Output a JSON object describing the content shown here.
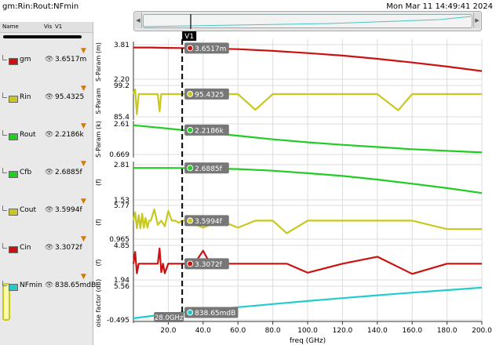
{
  "title": "gm:Rin:Rout:NFmin",
  "datetime": "Mon Mar 11 14:49:41 2024",
  "sidebar": {
    "columns": {
      "name": "Name",
      "vis": "Vis",
      "v1": "V1"
    },
    "traces": [
      {
        "name": "gm",
        "value": "3.6517m",
        "color": "#cc1111"
      },
      {
        "name": "Rin",
        "value": "95.4325",
        "color": "#c8c820"
      },
      {
        "name": "Rout",
        "value": "2.2186k",
        "color": "#22cc22"
      },
      {
        "name": "Cfb",
        "value": "2.6885f",
        "color": "#22cc22"
      },
      {
        "name": "Cout",
        "value": "3.5994f",
        "color": "#c8c820"
      },
      {
        "name": "Cin",
        "value": "3.3072f",
        "color": "#cc1111"
      },
      {
        "name": "NFmin",
        "value": "838.65mdB",
        "color": "#22cccc"
      }
    ]
  },
  "marker": {
    "name": "V1",
    "x": 28.0,
    "x_label": "28.0GHz"
  },
  "chart_data": {
    "type": "line",
    "xlabel": "freq (GHz)",
    "xlim": [
      0,
      200
    ],
    "xticks": [
      "20.0",
      "40.0",
      "60.0",
      "80.0",
      "100.0",
      "120.0",
      "140.0",
      "160.0",
      "180.0",
      "200.0"
    ],
    "xtick_values": [
      20,
      40,
      60,
      80,
      100,
      120,
      140,
      160,
      180,
      200
    ],
    "grid": true,
    "series": [
      {
        "name": "gm",
        "ylabel": "S-Param (m)",
        "ylim": [
          2.2,
          3.81
        ],
        "ytick_labels": [
          "3.81",
          "2.20"
        ],
        "color": "#cc1111",
        "marker_label": "3.6517m",
        "x": [
          0,
          10,
          20,
          28,
          40,
          60,
          80,
          100,
          120,
          140,
          160,
          180,
          200
        ],
        "y": [
          3.68,
          3.68,
          3.66,
          3.6517,
          3.64,
          3.6,
          3.52,
          3.42,
          3.3,
          3.15,
          2.98,
          2.79,
          2.58
        ]
      },
      {
        "name": "Rin",
        "ylabel": "S-Param",
        "ylim": [
          85.4,
          99.2
        ],
        "ytick_labels": [
          "99.2",
          "85.4"
        ],
        "color": "#c8c820",
        "marker_label": "95.4325",
        "x": [
          0,
          1,
          2,
          3,
          4,
          5,
          6,
          10,
          14,
          15,
          16,
          18,
          20,
          22,
          24,
          26,
          28,
          40,
          60,
          70,
          80,
          88,
          100,
          120,
          140,
          152,
          160,
          170,
          180,
          190,
          200
        ],
        "y": [
          95.4,
          97.5,
          86.5,
          95.4,
          95.4,
          95.4,
          95.4,
          95.4,
          95.4,
          87.8,
          95.4,
          95.4,
          95.4,
          95.4,
          95.4,
          95.4,
          95.4325,
          95.4,
          95.4,
          88.5,
          95.4,
          95.4,
          95.4,
          95.4,
          95.4,
          88.3,
          95.4,
          95.4,
          95.4,
          95.4,
          95.4
        ]
      },
      {
        "name": "Rout",
        "ylabel": "S-Param (k)",
        "ylim": [
          0.669,
          2.61
        ],
        "ytick_labels": [
          "2.61",
          "0.669"
        ],
        "color": "#22cc22",
        "marker_label": "2.2186k",
        "x": [
          0,
          10,
          20,
          28,
          40,
          60,
          80,
          100,
          120,
          140,
          160,
          180,
          200
        ],
        "y": [
          2.52,
          2.42,
          2.31,
          2.2186,
          2.08,
          1.86,
          1.63,
          1.44,
          1.28,
          1.14,
          1.0,
          0.9,
          0.8
        ]
      },
      {
        "name": "Cfb",
        "ylabel": "(f)",
        "ylim": [
          1.53,
          2.81
        ],
        "ytick_labels": [
          "2.81",
          "1.53"
        ],
        "color": "#22cc22",
        "marker_label": "2.6885f",
        "x": [
          0,
          10,
          20,
          28,
          40,
          60,
          80,
          100,
          120,
          140,
          160,
          180,
          200
        ],
        "y": [
          2.69,
          2.69,
          2.69,
          2.6885,
          2.68,
          2.65,
          2.59,
          2.5,
          2.4,
          2.27,
          2.12,
          1.96,
          1.78
        ]
      },
      {
        "name": "Cout",
        "ylabel": "(f)",
        "ylim": [
          0.965,
          5.77
        ],
        "ytick_labels": [
          "5.77",
          "0.965"
        ],
        "color": "#c8c820",
        "marker_label": "3.5994f",
        "x": [
          0,
          1,
          2,
          3,
          4,
          5,
          6,
          7,
          8,
          9,
          10,
          12,
          14,
          16,
          18,
          20,
          22,
          24,
          26,
          28,
          30,
          40,
          50,
          60,
          70,
          80,
          88,
          100,
          120,
          140,
          160,
          180,
          190,
          200
        ],
        "y": [
          3.6,
          4.8,
          2.5,
          4.4,
          2.5,
          4.6,
          2.6,
          4.0,
          2.6,
          3.6,
          3.6,
          5.2,
          3.0,
          3.6,
          2.8,
          5.0,
          3.6,
          3.6,
          3.3,
          3.5994,
          3.6,
          2.6,
          3.6,
          2.6,
          3.6,
          3.6,
          1.8,
          3.6,
          3.6,
          3.6,
          3.6,
          2.4,
          2.4,
          2.4
        ]
      },
      {
        "name": "Cin",
        "ylabel": "(f)",
        "ylim": [
          1.94,
          4.85
        ],
        "ytick_labels": [
          "4.85",
          "1.94"
        ],
        "color": "#cc1111",
        "marker_label": "3.3072f",
        "x": [
          0,
          1,
          2,
          3,
          4,
          5,
          10,
          14,
          15,
          16,
          17,
          18,
          20,
          24,
          28,
          35,
          40,
          44,
          50,
          60,
          70,
          80,
          88,
          100,
          120,
          140,
          160,
          180,
          200
        ],
        "y": [
          3.31,
          4.3,
          2.5,
          3.31,
          3.31,
          3.31,
          3.31,
          3.31,
          4.6,
          2.6,
          3.31,
          2.5,
          3.31,
          3.31,
          3.3072,
          3.31,
          4.4,
          3.31,
          3.31,
          3.31,
          3.31,
          3.31,
          3.31,
          2.55,
          3.31,
          3.9,
          2.45,
          3.31,
          3.31
        ]
      },
      {
        "name": "NFmin",
        "ylabel": "oise factor (dB)",
        "ylim": [
          -0.495,
          5.56
        ],
        "ytick_labels": [
          "5.56",
          "-0.495"
        ],
        "color": "#22cccc",
        "marker_label": "838.65mdB",
        "x": [
          0,
          10,
          20,
          28,
          40,
          60,
          80,
          100,
          120,
          140,
          160,
          180,
          200
        ],
        "y": [
          -0.2,
          0.2,
          0.55,
          0.83865,
          1.2,
          1.78,
          2.35,
          2.9,
          3.42,
          3.92,
          4.4,
          4.85,
          5.3
        ]
      }
    ]
  }
}
